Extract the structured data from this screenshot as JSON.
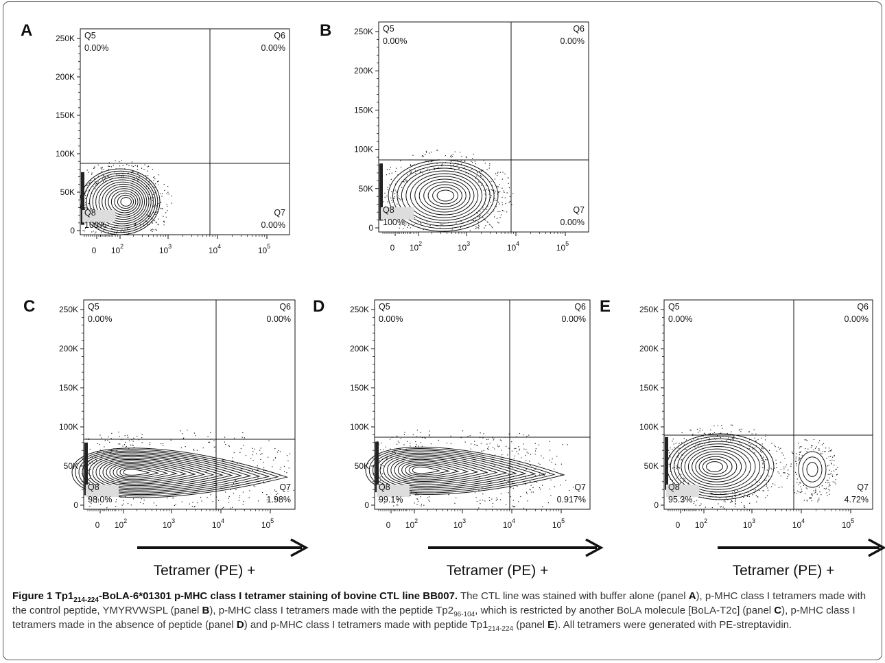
{
  "panels": [
    {
      "letter": "A",
      "yticks": [
        "250K",
        "200K",
        "150K",
        "100K",
        "50K",
        "0"
      ],
      "xticks": [
        "0",
        "10",
        "10",
        "10",
        "10"
      ],
      "xexp": [
        "",
        "2",
        "3",
        "4",
        "5"
      ],
      "quadrants": {
        "Q5": "0.00%",
        "Q6": "0.00%",
        "Q7": "0.00%",
        "Q8": "100%"
      },
      "quad_names": {
        "q5": "Q5",
        "q6": "Q6",
        "q7": "Q7",
        "q8": "Q8"
      },
      "xlabel": ""
    },
    {
      "letter": "B",
      "yticks": [
        "250K",
        "200K",
        "150K",
        "100K",
        "50K",
        "0"
      ],
      "xticks": [
        "0",
        "10",
        "10",
        "10",
        "10"
      ],
      "xexp": [
        "",
        "2",
        "3",
        "4",
        "5"
      ],
      "quadrants": {
        "Q5": "0.00%",
        "Q6": "0.00%",
        "Q7": "0.00%",
        "Q8": "100%"
      },
      "quad_names": {
        "q5": "Q5",
        "q6": "Q6",
        "q7": "Q7",
        "q8": "Q8"
      },
      "xlabel": ""
    },
    {
      "letter": "C",
      "yticks": [
        "250K",
        "200K",
        "150K",
        "100K",
        "50K",
        "0"
      ],
      "xticks": [
        "0",
        "10",
        "10",
        "10",
        "10"
      ],
      "xexp": [
        "",
        "2",
        "3",
        "4",
        "5"
      ],
      "quadrants": {
        "Q5": "0.00%",
        "Q6": "0.00%",
        "Q7": "1.98%",
        "Q8": "98.0%"
      },
      "quad_names": {
        "q5": "Q5",
        "q6": "Q6",
        "q7": "Q7",
        "q8": "Q8"
      },
      "xlabel": "Tetramer (PE) +"
    },
    {
      "letter": "D",
      "yticks": [
        "250K",
        "200K",
        "150K",
        "100K",
        "50K",
        "0"
      ],
      "xticks": [
        "0",
        "10",
        "10",
        "10",
        "10"
      ],
      "xexp": [
        "",
        "2",
        "3",
        "4",
        "5"
      ],
      "quadrants": {
        "Q5": "0.00%",
        "Q6": "0.00%",
        "Q7": "0.917%",
        "Q8": "99.1%"
      },
      "quad_names": {
        "q5": "Q5",
        "q6": "Q6",
        "q7": "Q7",
        "q8": "Q8"
      },
      "xlabel": "Tetramer (PE) +"
    },
    {
      "letter": "E",
      "yticks": [
        "250K",
        "200K",
        "150K",
        "100K",
        "50K",
        "0"
      ],
      "xticks": [
        "0",
        "10",
        "10",
        "10",
        "10"
      ],
      "xexp": [
        "",
        "2",
        "3",
        "4",
        "5"
      ],
      "quadrants": {
        "Q5": "0.00%",
        "Q6": "0.00%",
        "Q7": "4.72%",
        "Q8": "95.3%"
      },
      "quad_names": {
        "q5": "Q5",
        "q6": "Q6",
        "q7": "Q7",
        "q8": "Q8"
      },
      "xlabel": "Tetramer (PE) +"
    }
  ],
  "caption": {
    "label": "Figure 1",
    "title_pre": "Tp1",
    "title_sub": "214-224",
    "title_post": "-BoLA-6*01301 p-MHC class I tetramer staining of bovine CTL line BB007.",
    "t1": "The CTL line was stained with buffer alone (panel ",
    "pA": "A",
    "t2": "), p-MHC class I tetramers made with the control peptide, YMYRVWSPL (panel ",
    "pB": "B",
    "t3": "), p-MHC class I tetramers made with the peptide Tp2",
    "s1": "96-104",
    "t4": ", which is restricted by another BoLA molecule [BoLA-T2c] (panel ",
    "pC": "C",
    "t5": "), p-MHC class I tetramers made in the absence of peptide (panel ",
    "pD": "D",
    "t6": ") and p-MHC class I tetramers made with peptide Tp1",
    "s2": "214-224",
    "t7": " (panel ",
    "pE": "E",
    "t8": "). All tetramers were generated with PE-streptavidin."
  }
}
